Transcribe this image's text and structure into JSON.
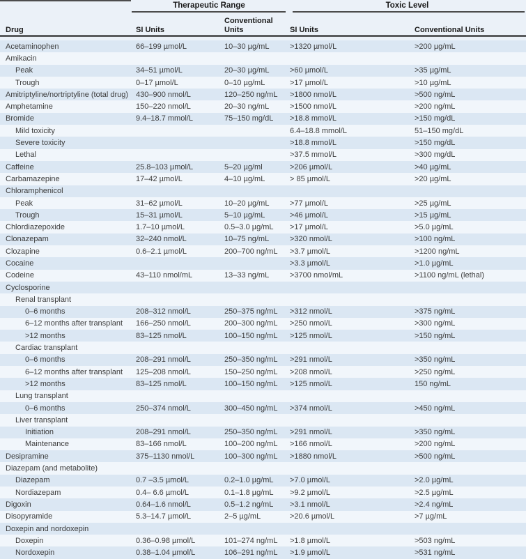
{
  "table": {
    "title_groups": {
      "therapeutic": "Therapeutic Range",
      "toxic": "Toxic Level"
    },
    "columns": {
      "drug": "Drug",
      "tr_si": "SI Units",
      "tr_conv": "Conventional Units",
      "tox_si": "SI Units",
      "tox_conv": "Conventional Units"
    },
    "rows": [
      {
        "drug": "Acetaminophen",
        "indent": 0,
        "tr_si": "66–199 µmol/L",
        "tr_conv": "10–30 µg/mL",
        "tox_si": ">1320 µmol/L",
        "tox_conv": ">200 µg/mL"
      },
      {
        "drug": "Amikacin",
        "indent": 0,
        "tr_si": "",
        "tr_conv": "",
        "tox_si": "",
        "tox_conv": ""
      },
      {
        "drug": "Peak",
        "indent": 1,
        "tr_si": "34–51 µmol/L",
        "tr_conv": "20–30 µg/mL",
        "tox_si": ">60 µmol/L",
        "tox_conv": ">35 µg/mL"
      },
      {
        "drug": "Trough",
        "indent": 1,
        "tr_si": "0–17 µmol/L",
        "tr_conv": "0–10 µg/mL",
        "tox_si": ">17 µmol/L",
        "tox_conv": ">10 µg/mL"
      },
      {
        "drug": "Amitriptyline/nortriptyline (total drug)",
        "indent": 0,
        "tr_si": "430–900 nmol/L",
        "tr_conv": "120–250 ng/mL",
        "tox_si": ">1800 nmol/L",
        "tox_conv": ">500 ng/mL"
      },
      {
        "drug": "Amphetamine",
        "indent": 0,
        "tr_si": "150–220 nmol/L",
        "tr_conv": "20–30 ng/mL",
        "tox_si": ">1500 nmol/L",
        "tox_conv": ">200 ng/mL"
      },
      {
        "drug": "Bromide",
        "indent": 0,
        "tr_si": "9.4–18.7 mmol/L",
        "tr_conv": "75–150 mg/dL",
        "tox_si": ">18.8 mmol/L",
        "tox_conv": ">150 mg/dL"
      },
      {
        "drug": "Mild toxicity",
        "indent": 1,
        "tr_si": "",
        "tr_conv": "",
        "tox_si": "6.4–18.8 mmol/L",
        "tox_conv": "51–150 mg/dL"
      },
      {
        "drug": "Severe toxicity",
        "indent": 1,
        "tr_si": "",
        "tr_conv": "",
        "tox_si": ">18.8 mmol/L",
        "tox_conv": ">150 mg/dL"
      },
      {
        "drug": "Lethal",
        "indent": 1,
        "tr_si": "",
        "tr_conv": "",
        "tox_si": ">37.5 mmol/L",
        "tox_conv": ">300 mg/dL"
      },
      {
        "drug": "Caffeine",
        "indent": 0,
        "tr_si": "25.8–103 µmol/L",
        "tr_conv": "5–20 µg/ml",
        "tox_si": ">206 µmol/L",
        "tox_conv": ">40 µg/mL"
      },
      {
        "drug": "Carbamazepine",
        "indent": 0,
        "tr_si": "17–42 µmol/L",
        "tr_conv": "4–10 µg/mL",
        "tox_si": "> 85 µmol/L",
        "tox_conv": ">20 µg/mL"
      },
      {
        "drug": "Chloramphenicol",
        "indent": 0,
        "tr_si": "",
        "tr_conv": "",
        "tox_si": "",
        "tox_conv": ""
      },
      {
        "drug": "Peak",
        "indent": 1,
        "tr_si": "31–62 µmol/L",
        "tr_conv": "10–20 µg/mL",
        "tox_si": ">77 µmol/L",
        "tox_conv": ">25 µg/mL"
      },
      {
        "drug": "Trough",
        "indent": 1,
        "tr_si": "15–31 µmol/L",
        "tr_conv": "5–10 µg/mL",
        "tox_si": ">46 µmol/L",
        "tox_conv": ">15 µg/mL"
      },
      {
        "drug": "Chlordiazepoxide",
        "indent": 0,
        "tr_si": "1.7–10 µmol/L",
        "tr_conv": "0.5–3.0 µg/mL",
        "tox_si": ">17 µmol/L",
        "tox_conv": ">5.0 µg/mL"
      },
      {
        "drug": "Clonazepam",
        "indent": 0,
        "tr_si": "32–240 nmol/L",
        "tr_conv": "10–75 ng/mL",
        "tox_si": ">320 nmol/L",
        "tox_conv": ">100 ng/mL"
      },
      {
        "drug": "Clozapine",
        "indent": 0,
        "tr_si": "0.6–2.1 µmol/L",
        "tr_conv": "200–700 ng/mL",
        "tox_si": ">3.7 µmol/L",
        "tox_conv": ">1200 ng/mL"
      },
      {
        "drug": "Cocaine",
        "indent": 0,
        "tr_si": "",
        "tr_conv": "",
        "tox_si": ">3.3 µmol/L",
        "tox_conv": ">1.0 µg/mL"
      },
      {
        "drug": "Codeine",
        "indent": 0,
        "tr_si": "43–110 nmol/mL",
        "tr_conv": "13–33 ng/mL",
        "tox_si": ">3700 nmol/mL",
        "tox_conv": ">1100 ng/mL (lethal)"
      },
      {
        "drug": "Cyclosporine",
        "indent": 0,
        "tr_si": "",
        "tr_conv": "",
        "tox_si": "",
        "tox_conv": ""
      },
      {
        "drug": "Renal transplant",
        "indent": 1,
        "tr_si": "",
        "tr_conv": "",
        "tox_si": "",
        "tox_conv": ""
      },
      {
        "drug": "0–6 months",
        "indent": 2,
        "tr_si": "208–312 nmol/L",
        "tr_conv": "250–375 ng/mL",
        "tox_si": ">312 nmol/L",
        "tox_conv": ">375 ng/mL"
      },
      {
        "drug": "6–12 months after transplant",
        "indent": 2,
        "tr_si": "166–250 nmol/L",
        "tr_conv": "200–300 ng/mL",
        "tox_si": ">250 nmol/L",
        "tox_conv": ">300 ng/mL"
      },
      {
        "drug": ">12 months",
        "indent": 2,
        "tr_si": "83–125 nmol/L",
        "tr_conv": "100–150 ng/mL",
        "tox_si": ">125 nmol/L",
        "tox_conv": ">150 ng/mL"
      },
      {
        "drug": "Cardiac transplant",
        "indent": 1,
        "tr_si": "",
        "tr_conv": "",
        "tox_si": "",
        "tox_conv": ""
      },
      {
        "drug": "0–6 months",
        "indent": 2,
        "tr_si": "208–291 nmol/L",
        "tr_conv": "250–350 ng/mL",
        "tox_si": ">291 nmol/L",
        "tox_conv": ">350 ng/mL"
      },
      {
        "drug": "6–12 months after transplant",
        "indent": 2,
        "tr_si": "125–208 nmol/L",
        "tr_conv": "150–250 ng/mL",
        "tox_si": ">208 nmol/L",
        "tox_conv": ">250 ng/mL"
      },
      {
        "drug": ">12 months",
        "indent": 2,
        "tr_si": "83–125 nmol/L",
        "tr_conv": "100–150 ng/mL",
        "tox_si": ">125 nmol/L",
        "tox_conv": "150 ng/mL"
      },
      {
        "drug": "Lung transplant",
        "indent": 1,
        "tr_si": "",
        "tr_conv": "",
        "tox_si": "",
        "tox_conv": ""
      },
      {
        "drug": "0–6 months",
        "indent": 2,
        "tr_si": "250–374 nmol/L",
        "tr_conv": "300–450 ng/mL",
        "tox_si": ">374 nmol/L",
        "tox_conv": ">450 ng/mL"
      },
      {
        "drug": "Liver transplant",
        "indent": 1,
        "tr_si": "",
        "tr_conv": "",
        "tox_si": "",
        "tox_conv": ""
      },
      {
        "drug": "Initiation",
        "indent": 2,
        "tr_si": "208–291 nmol/L",
        "tr_conv": "250–350 ng/mL",
        "tox_si": ">291 nmol/L",
        "tox_conv": ">350 ng/mL"
      },
      {
        "drug": "Maintenance",
        "indent": 2,
        "tr_si": "83–166 nmol/L",
        "tr_conv": "100–200 ng/mL",
        "tox_si": ">166 nmol/L",
        "tox_conv": ">200 ng/mL"
      },
      {
        "drug": "Desipramine",
        "indent": 0,
        "tr_si": "375–1130 nmol/L",
        "tr_conv": "100–300 ng/mL",
        "tox_si": ">1880 nmol/L",
        "tox_conv": ">500 ng/mL"
      },
      {
        "drug": "Diazepam (and metabolite)",
        "indent": 0,
        "tr_si": "",
        "tr_conv": "",
        "tox_si": "",
        "tox_conv": ""
      },
      {
        "drug": "Diazepam",
        "indent": 1,
        "tr_si": "0.7 –3.5 µmol/L",
        "tr_conv": "0.2–1.0 µg/mL",
        "tox_si": ">7.0 µmol/L",
        "tox_conv": ">2.0 µg/mL"
      },
      {
        "drug": "Nordiazepam",
        "indent": 1,
        "tr_si": "0.4– 6.6 µmol/L",
        "tr_conv": "0.1–1.8 µg/mL",
        "tox_si": ">9.2 µmol/L",
        "tox_conv": ">2.5 µg/mL"
      },
      {
        "drug": "Digoxin",
        "indent": 0,
        "tr_si": "0.64–1.6 nmol/L",
        "tr_conv": "0.5–1.2 ng/mL",
        "tox_si": ">3.1 nmol/L",
        "tox_conv": ">2.4 ng/mL"
      },
      {
        "drug": "Disopyramide",
        "indent": 0,
        "tr_si": "5.3–14.7 µmol/L",
        "tr_conv": "2–5 µg/mL",
        "tox_si": ">20.6 µmol/L",
        "tox_conv": ">7 µg/mL"
      },
      {
        "drug": "Doxepin and nordoxepin",
        "indent": 0,
        "tr_si": "",
        "tr_conv": "",
        "tox_si": "",
        "tox_conv": ""
      },
      {
        "drug": "Doxepin",
        "indent": 1,
        "tr_si": "0.36–0.98 µmol/L",
        "tr_conv": "101–274 ng/mL",
        "tox_si": ">1.8 µmol/L",
        "tox_conv": ">503 ng/mL"
      },
      {
        "drug": "Nordoxepin",
        "indent": 1,
        "tr_si": "0.38–1.04 µmol/L",
        "tr_conv": "106–291 ng/mL",
        "tox_si": ">1.9 µmol/L",
        "tox_conv": ">531 ng/mL"
      }
    ]
  },
  "colors": {
    "stripe_blue": "#dbe7f3",
    "stripe_light": "#f1f6fb",
    "header_bg": "#ebf1f8",
    "rule_dark": "#4c4c4c",
    "rule_heavy": "#5a5c5e",
    "text": "#3c3c3c"
  }
}
